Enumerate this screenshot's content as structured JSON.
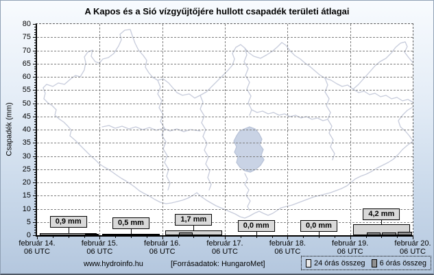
{
  "title": "A Kapos és a Sió vízgyűjtőjére hullott csapadék területi átlagai",
  "y_axis": {
    "label": "Csapadék (mm)",
    "min": 0,
    "max": 80,
    "step": 5
  },
  "x_axis": {
    "days": [
      {
        "date": "február 14.",
        "time": "06 UTC"
      },
      {
        "date": "február 15.",
        "time": "06 UTC"
      },
      {
        "date": "február 16.",
        "time": "06 UTC"
      },
      {
        "date": "február 17.",
        "time": "06 UTC"
      },
      {
        "date": "február 18.",
        "time": "06 UTC"
      },
      {
        "date": "február 19.",
        "time": "06 UTC"
      },
      {
        "date": "február 20.",
        "time": "06 UTC"
      }
    ]
  },
  "footer": {
    "website": "www.hydroinfo.hu",
    "source": "[Forrásadatok: HungaroMet]"
  },
  "legend": {
    "items": [
      {
        "label": "24 órás összeg",
        "color": "#e9e9e9"
      },
      {
        "label": "6 órás összeg",
        "color": "#909090"
      }
    ]
  },
  "colors": {
    "bar_24h": "#d4d4d4",
    "bar_6h": "#909090",
    "value_box": "#d9d9d9",
    "grid": "#7e7e7e",
    "map_line": "#c6cbdb",
    "lake_fill": "#c9d3e5",
    "background_top": "#f8fbfe",
    "background_bottom": "#b4c7de"
  },
  "chart_data": {
    "type": "bar",
    "title": "A Kapos és a Sió vízgyűjtőjére hullott csapadék területi átlagai",
    "xlabel": "",
    "ylabel": "Csapadék (mm)",
    "ylim": [
      0,
      80
    ],
    "grid": true,
    "legend_position": "bottom-right",
    "x_tick_labels": [
      "február 14. 06 UTC",
      "február 15. 06 UTC",
      "február 16. 06 UTC",
      "február 17. 06 UTC",
      "február 18. 06 UTC",
      "február 19. 06 UTC",
      "február 20. 06 UTC"
    ],
    "series": [
      {
        "name": "24 órás összeg",
        "unit": "mm",
        "values": [
          0.9,
          0.5,
          1.7,
          0.0,
          0.0,
          4.2
        ]
      },
      {
        "name": "6 órás összeg",
        "unit": "mm",
        "quarter_values": [
          [
            0,
            0,
            0,
            0.5
          ],
          [
            0,
            0,
            0,
            0
          ],
          [
            0,
            1.0,
            0,
            0
          ],
          [
            0,
            0,
            0,
            0
          ],
          [
            0,
            0,
            0,
            0
          ],
          [
            0,
            1.0,
            1.0,
            1.3
          ]
        ]
      }
    ],
    "bar_labels": [
      "0,9 mm",
      "0,5 mm",
      "1,7 mm",
      "0,0 mm",
      "0,0 mm",
      "4,2 mm"
    ]
  }
}
